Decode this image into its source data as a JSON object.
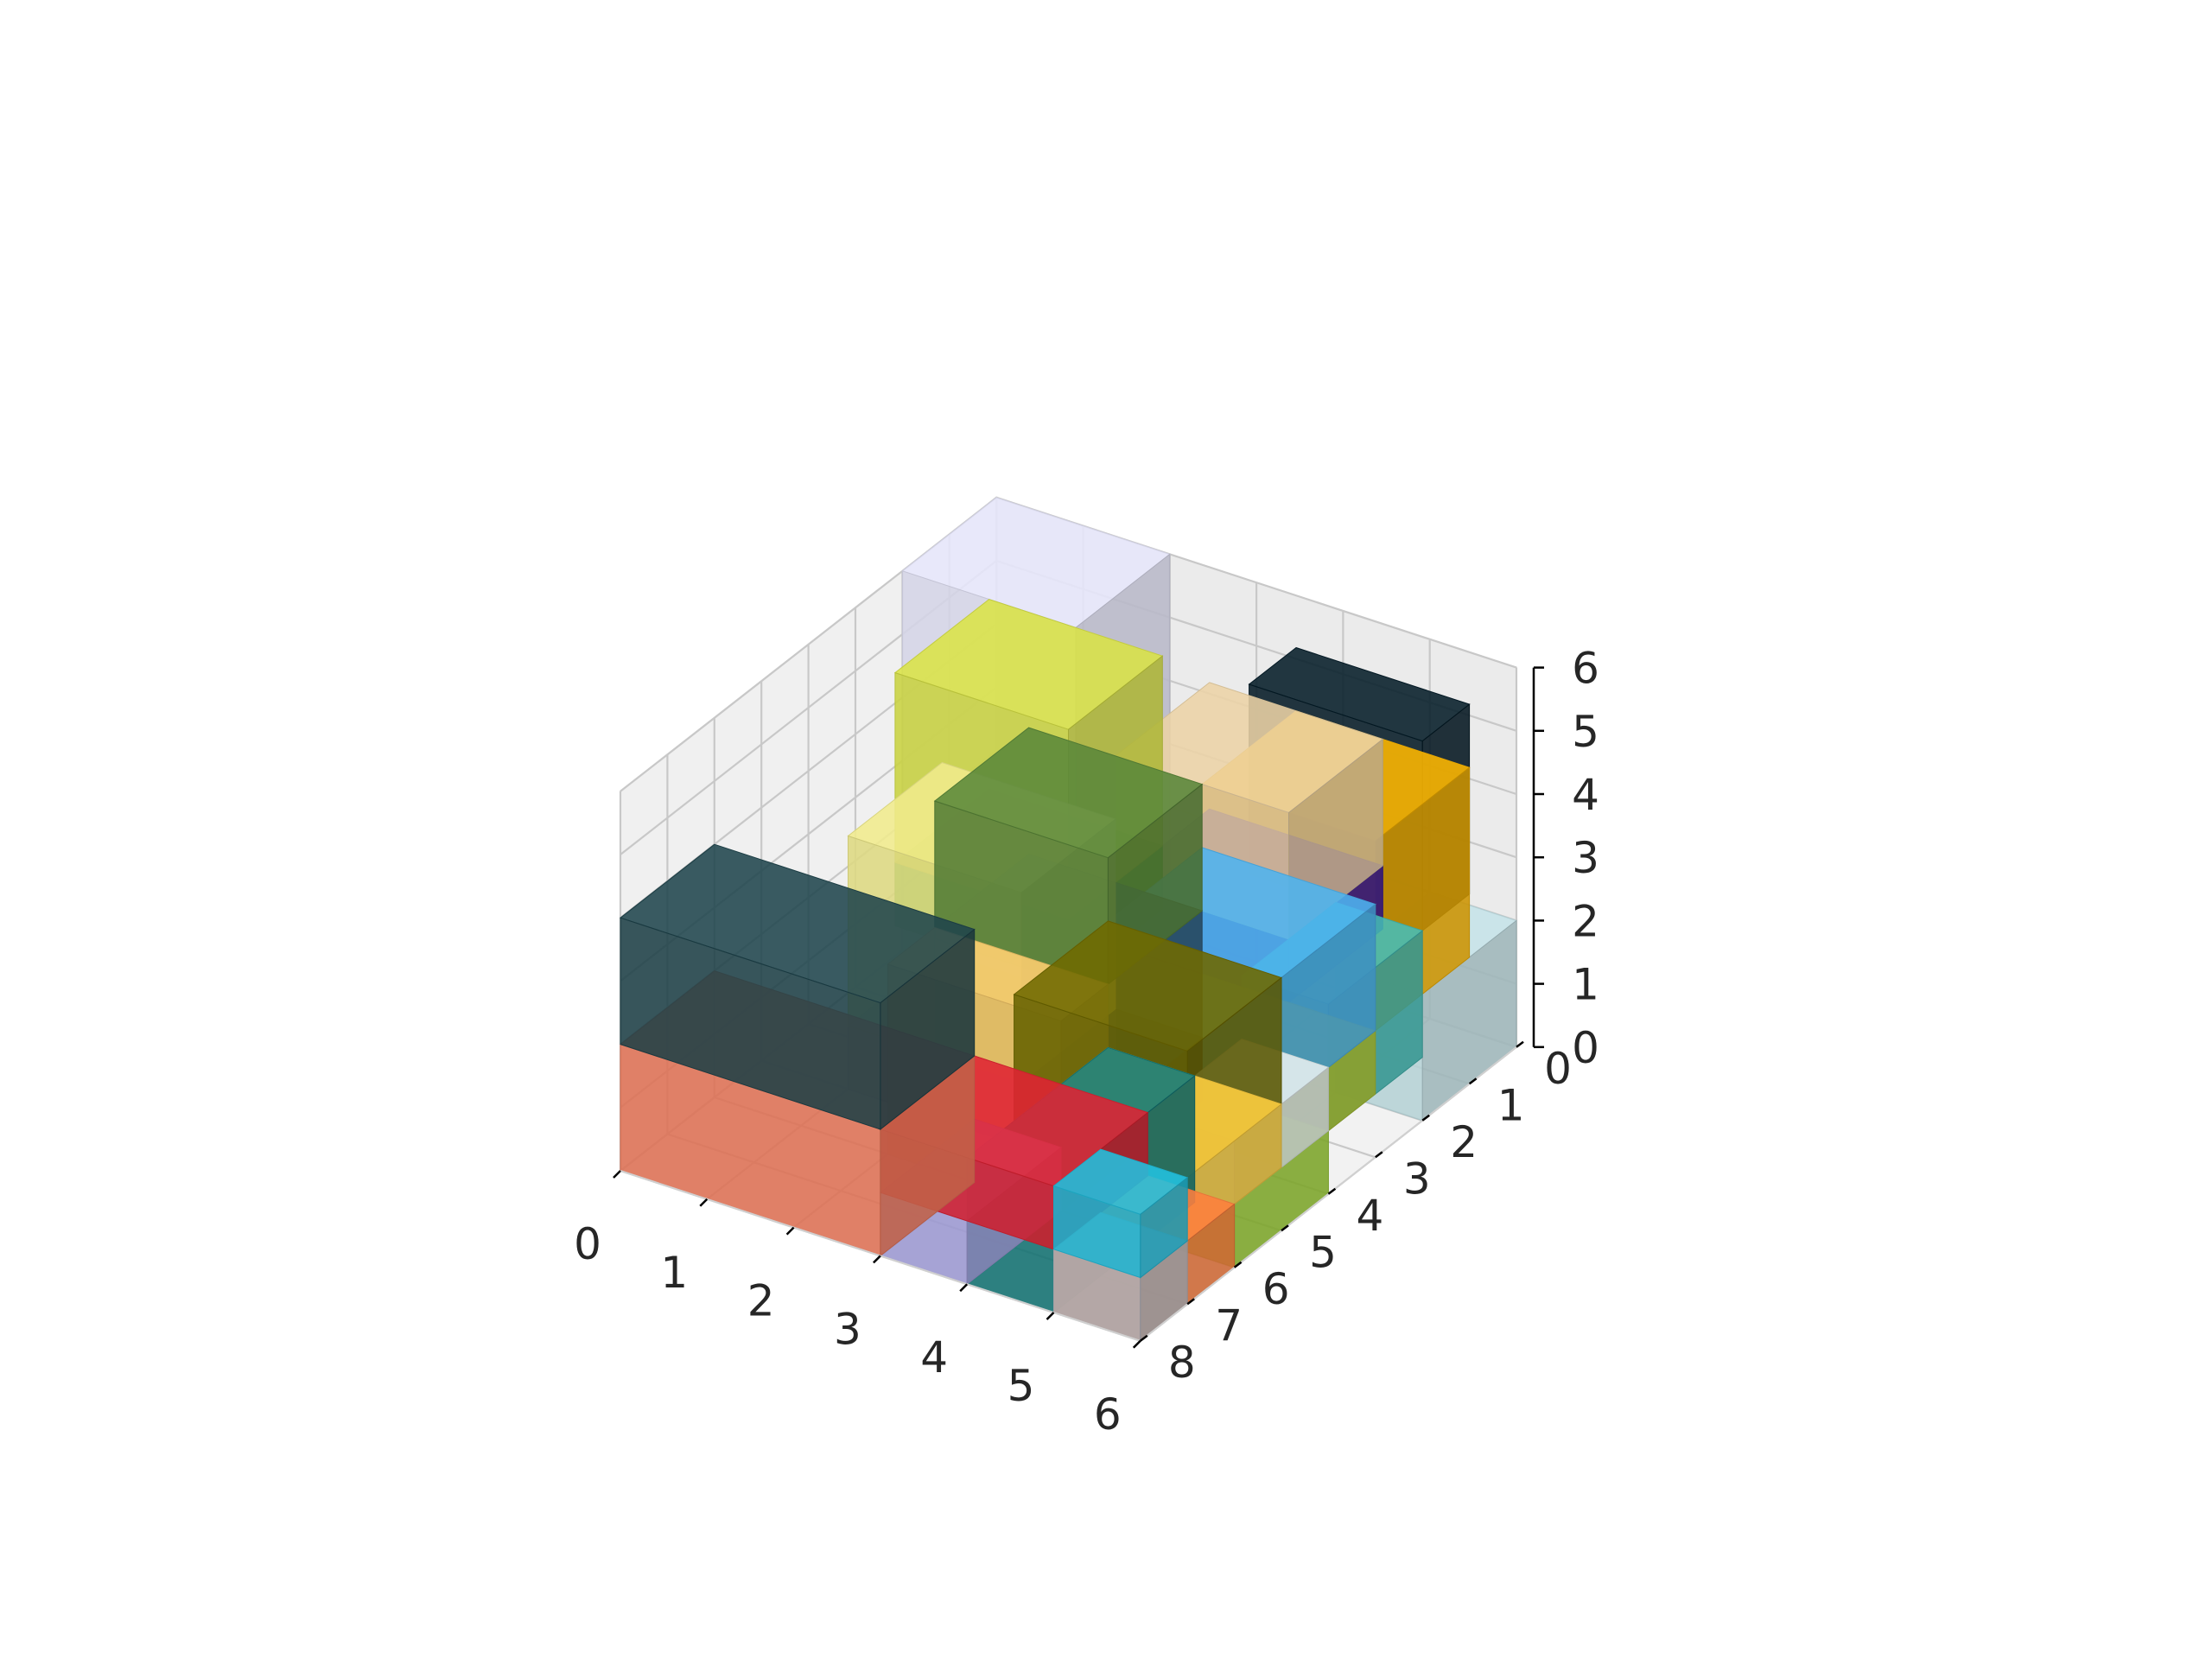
{
  "chart_data": {
    "type": "voxel-3d",
    "title": "",
    "xlabel": "",
    "ylabel": "",
    "zlabel": "",
    "xlim": [
      0,
      6
    ],
    "ylim": [
      0,
      8
    ],
    "zlim": [
      0,
      6
    ],
    "grid": true,
    "x_ticks": [
      "0",
      "1",
      "2",
      "3",
      "4",
      "5",
      "6"
    ],
    "y_ticks": [
      "0",
      "1",
      "2",
      "3",
      "4",
      "5",
      "6",
      "7",
      "8"
    ],
    "z_ticks": [
      "0",
      "1",
      "2",
      "3",
      "4",
      "5",
      "6"
    ],
    "boxes": [
      {
        "x": [
          0,
          2
        ],
        "y": [
          0,
          2
        ],
        "z": [
          0,
          6
        ],
        "color": "#e6e6fa"
      },
      {
        "x": [
          0,
          3
        ],
        "y": [
          6,
          8
        ],
        "z": [
          0,
          2
        ],
        "color": "#f0795a"
      },
      {
        "x": [
          0,
          3
        ],
        "y": [
          6,
          8
        ],
        "z": [
          2,
          4
        ],
        "color": "#1f444c"
      },
      {
        "x": [
          1,
          3
        ],
        "y": [
          2,
          4
        ],
        "z": [
          3,
          6
        ],
        "color": "#d9e346"
      },
      {
        "x": [
          1,
          3
        ],
        "y": [
          2,
          4
        ],
        "z": [
          2,
          3
        ],
        "color": "#4caf3c"
      },
      {
        "x": [
          1,
          3
        ],
        "y": [
          3,
          5
        ],
        "z": [
          1,
          4
        ],
        "color": "#f0eb8c"
      },
      {
        "x": [
          1,
          3
        ],
        "y": [
          3,
          5
        ],
        "z": [
          0,
          1
        ],
        "color": "#c0c0c0"
      },
      {
        "x": [
          2,
          4
        ],
        "y": [
          5,
          6
        ],
        "z": [
          0,
          3
        ],
        "color": "#f5c86a"
      },
      {
        "x": [
          3,
          5
        ],
        "y": [
          1,
          3
        ],
        "z": [
          3,
          5
        ],
        "color": "#ecd3a6"
      },
      {
        "x": [
          3,
          5
        ],
        "y": [
          1,
          3
        ],
        "z": [
          2,
          3
        ],
        "color": "#3716a0"
      },
      {
        "x": [
          2,
          4
        ],
        "y": [
          3,
          5
        ],
        "z": [
          3,
          5
        ],
        "color": "#5a873a"
      },
      {
        "x": [
          2,
          4
        ],
        "y": [
          3,
          5
        ],
        "z": [
          1,
          3
        ],
        "color": "#2e5872"
      },
      {
        "x": [
          2,
          4
        ],
        "y": [
          3,
          5
        ],
        "z": [
          0,
          1
        ],
        "color": "#2e2a2d"
      },
      {
        "x": [
          3,
          5
        ],
        "y": [
          6,
          8
        ],
        "z": [
          1,
          2
        ],
        "color": "#e02233"
      },
      {
        "x": [
          3,
          4
        ],
        "y": [
          6,
          8
        ],
        "z": [
          0,
          1
        ],
        "color": "#a8a4e2"
      },
      {
        "x": [
          4,
          5
        ],
        "y": [
          5,
          8
        ],
        "z": [
          0,
          2
        ],
        "color": "#127a7a"
      },
      {
        "x": [
          5,
          6
        ],
        "y": [
          7,
          8
        ],
        "z": [
          0,
          1
        ],
        "color": "#bbbbc2"
      },
      {
        "x": [
          5,
          6
        ],
        "y": [
          7,
          8
        ],
        "z": [
          1,
          2
        ],
        "color": "#22c1e0"
      },
      {
        "x": [
          4,
          6
        ],
        "y": [
          3,
          5
        ],
        "z": [
          2,
          4
        ],
        "color": "#4db4f0"
      },
      {
        "x": [
          4,
          6
        ],
        "y": [
          3,
          5
        ],
        "z": [
          1,
          2
        ],
        "color": "#b4c832"
      },
      {
        "x": [
          5,
          6
        ],
        "y": [
          4,
          6
        ],
        "z": [
          1,
          2
        ],
        "color": "#e8f0f0"
      },
      {
        "x": [
          4,
          6
        ],
        "y": [
          5,
          7
        ],
        "z": [
          2,
          4
        ],
        "color": "#706a00"
      },
      {
        "x": [
          4,
          6
        ],
        "y": [
          5,
          8
        ],
        "z": [
          1,
          2
        ],
        "color": "#ffcf40"
      },
      {
        "x": [
          5,
          6
        ],
        "y": [
          6,
          8
        ],
        "z": [
          0,
          1
        ],
        "color": "#ff8040"
      },
      {
        "x": [
          4,
          6
        ],
        "y": [
          1,
          2
        ],
        "z": [
          3,
          6
        ],
        "color": "#041c28"
      },
      {
        "x": [
          4,
          6
        ],
        "y": [
          1,
          3
        ],
        "z": [
          2,
          5
        ],
        "color": "#ffb800"
      },
      {
        "x": [
          5,
          6
        ],
        "y": [
          2,
          4
        ],
        "z": [
          1,
          3
        ],
        "color": "#43bbb5"
      },
      {
        "x": [
          5,
          6
        ],
        "y": [
          0,
          2
        ],
        "z": [
          0,
          2
        ],
        "color": "#c5e3e8"
      },
      {
        "x": [
          5,
          6
        ],
        "y": [
          4,
          6
        ],
        "z": [
          0,
          1
        ],
        "color": "#9acd32"
      }
    ]
  }
}
